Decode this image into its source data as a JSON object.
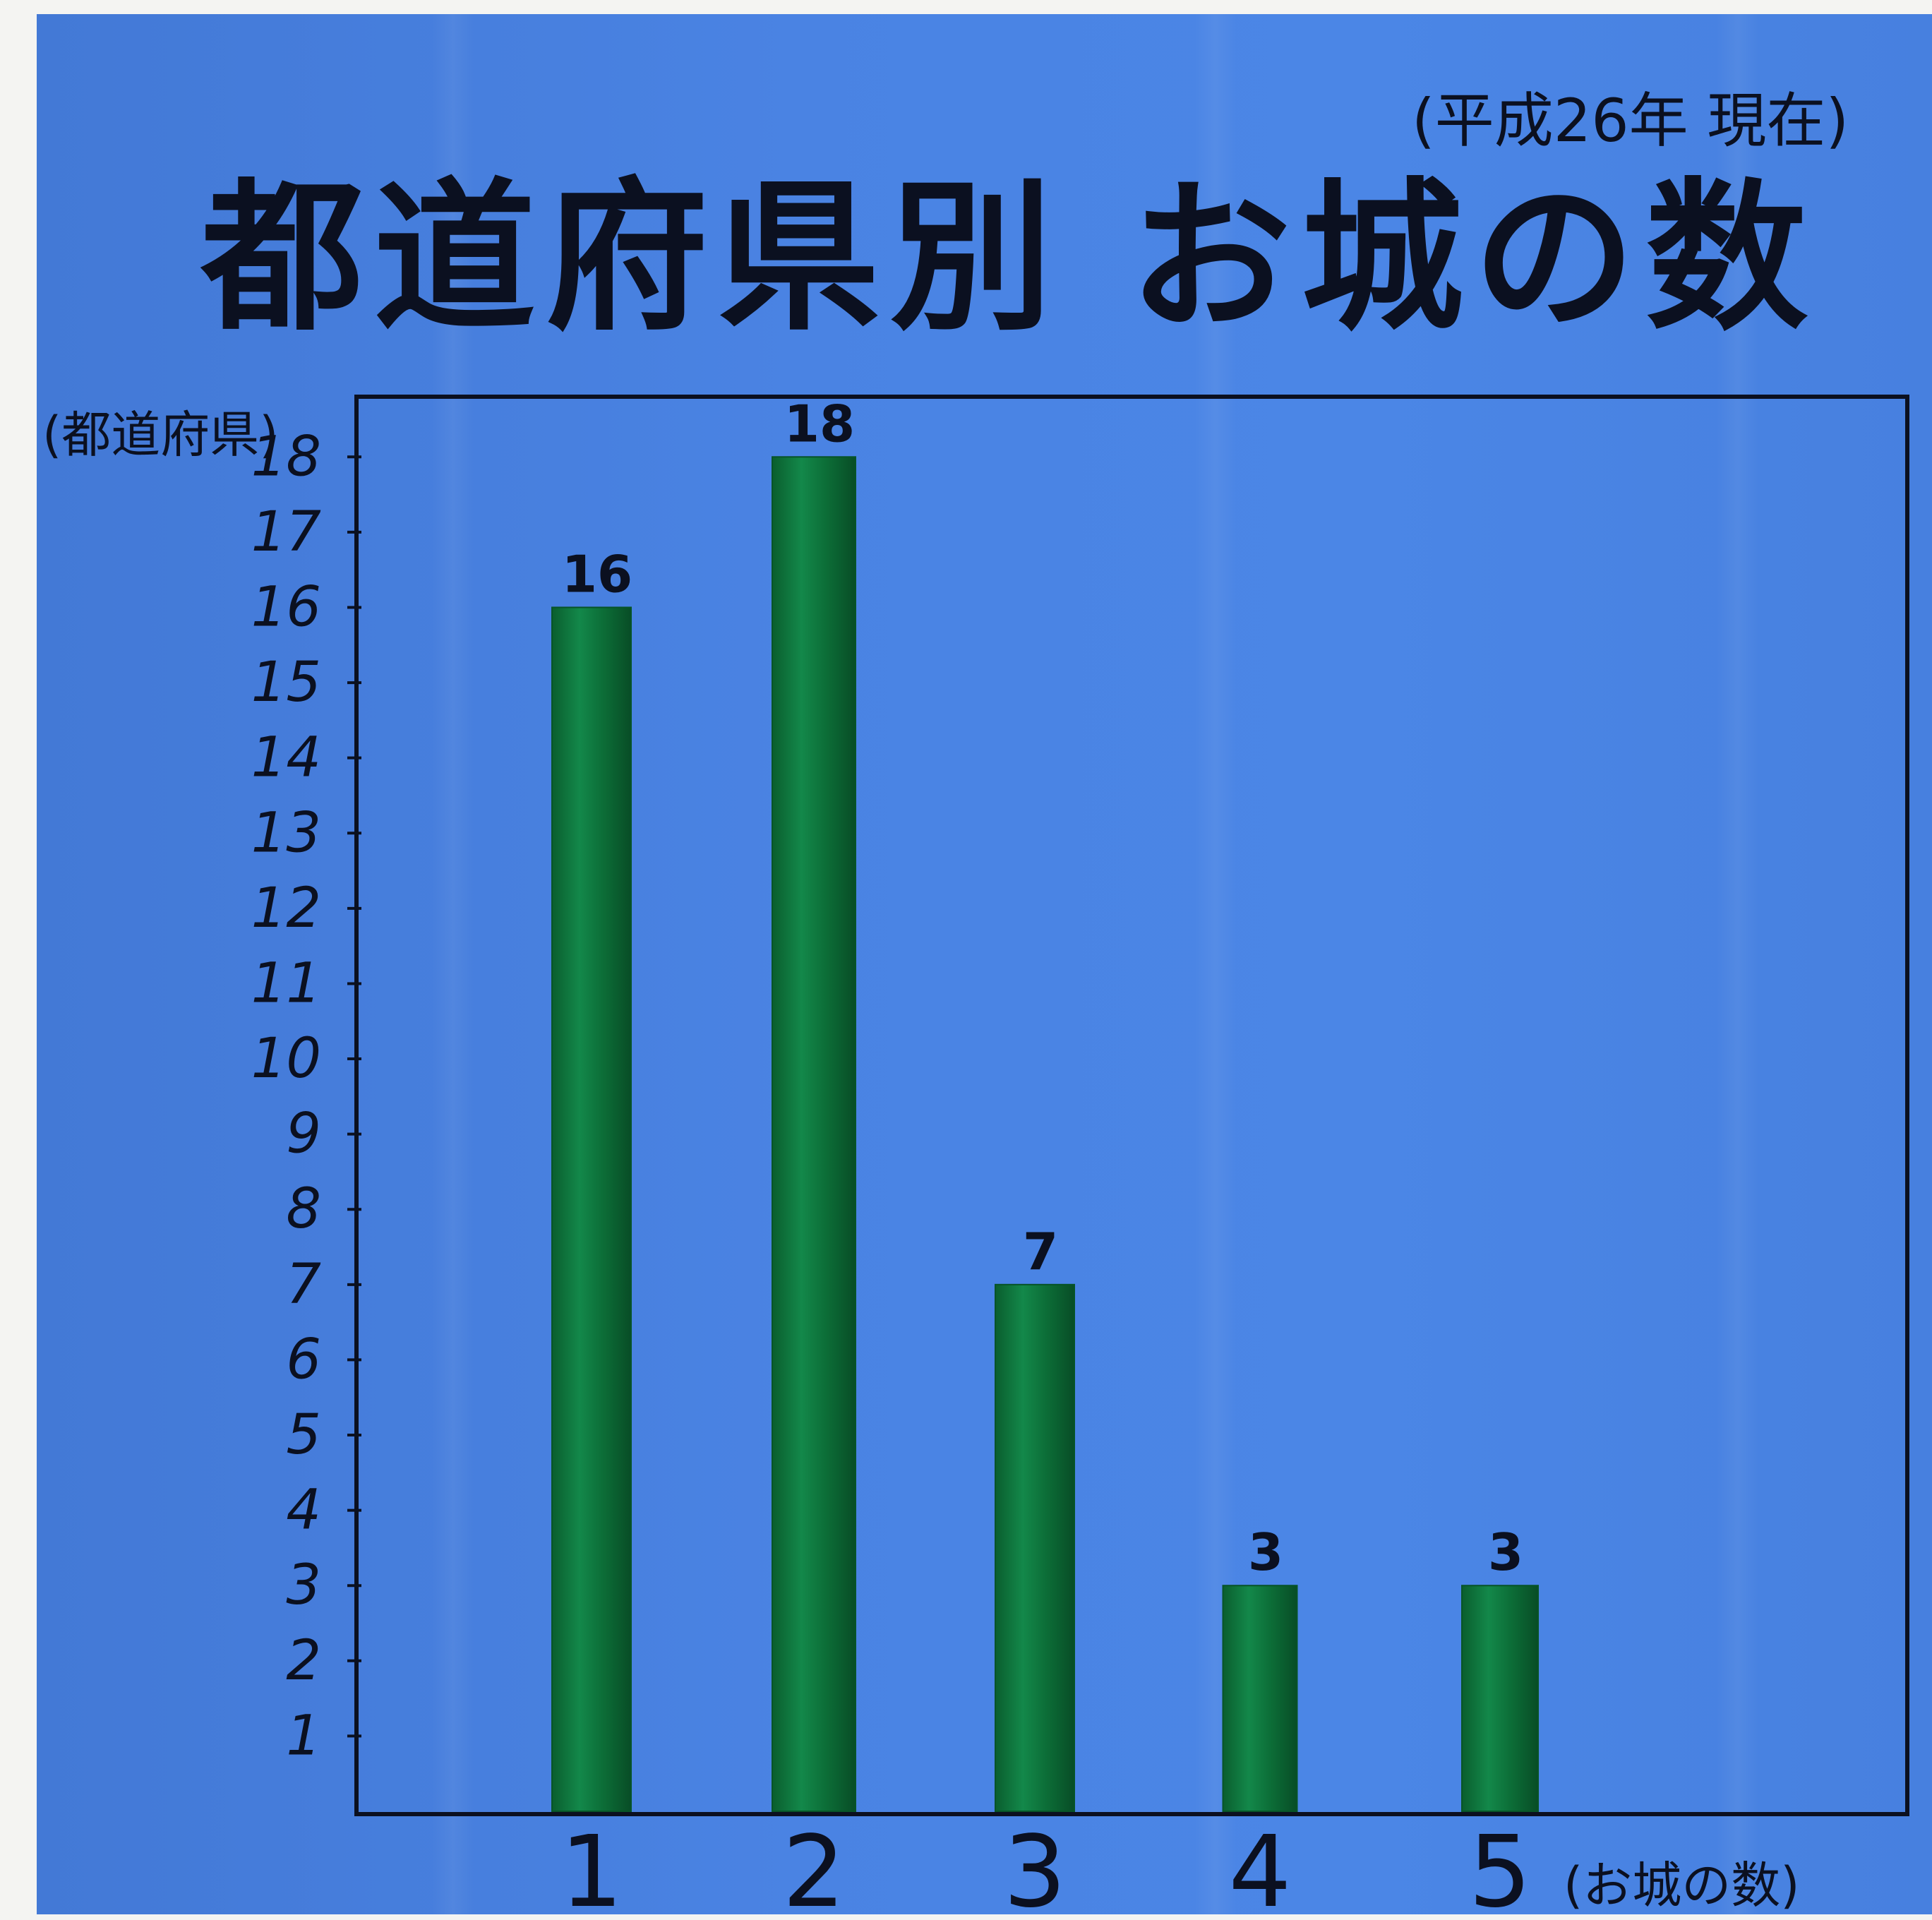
{
  "colors": {
    "paper": "#4a83e3",
    "bar_fill": "#0f7a3e",
    "bar_dark": "#075428",
    "ink": "#0b1020"
  },
  "chart_data": {
    "type": "bar",
    "title": "都道府県別 お城の数",
    "subtitle": "(平成26年 現在)",
    "xlabel": "(お城の数)",
    "ylabel": "(都道府県)",
    "categories": [
      "1",
      "2",
      "3",
      "4",
      "5"
    ],
    "values": [
      16,
      18,
      7,
      3,
      3
    ],
    "data_labels": [
      "16",
      "18",
      "7",
      "3",
      "3"
    ],
    "ylim": [
      0,
      18.8
    ],
    "yticks": [
      1,
      2,
      3,
      4,
      5,
      6,
      7,
      8,
      9,
      10,
      11,
      12,
      13,
      14,
      15,
      16,
      17,
      18
    ],
    "grid": false,
    "legend": "none"
  }
}
